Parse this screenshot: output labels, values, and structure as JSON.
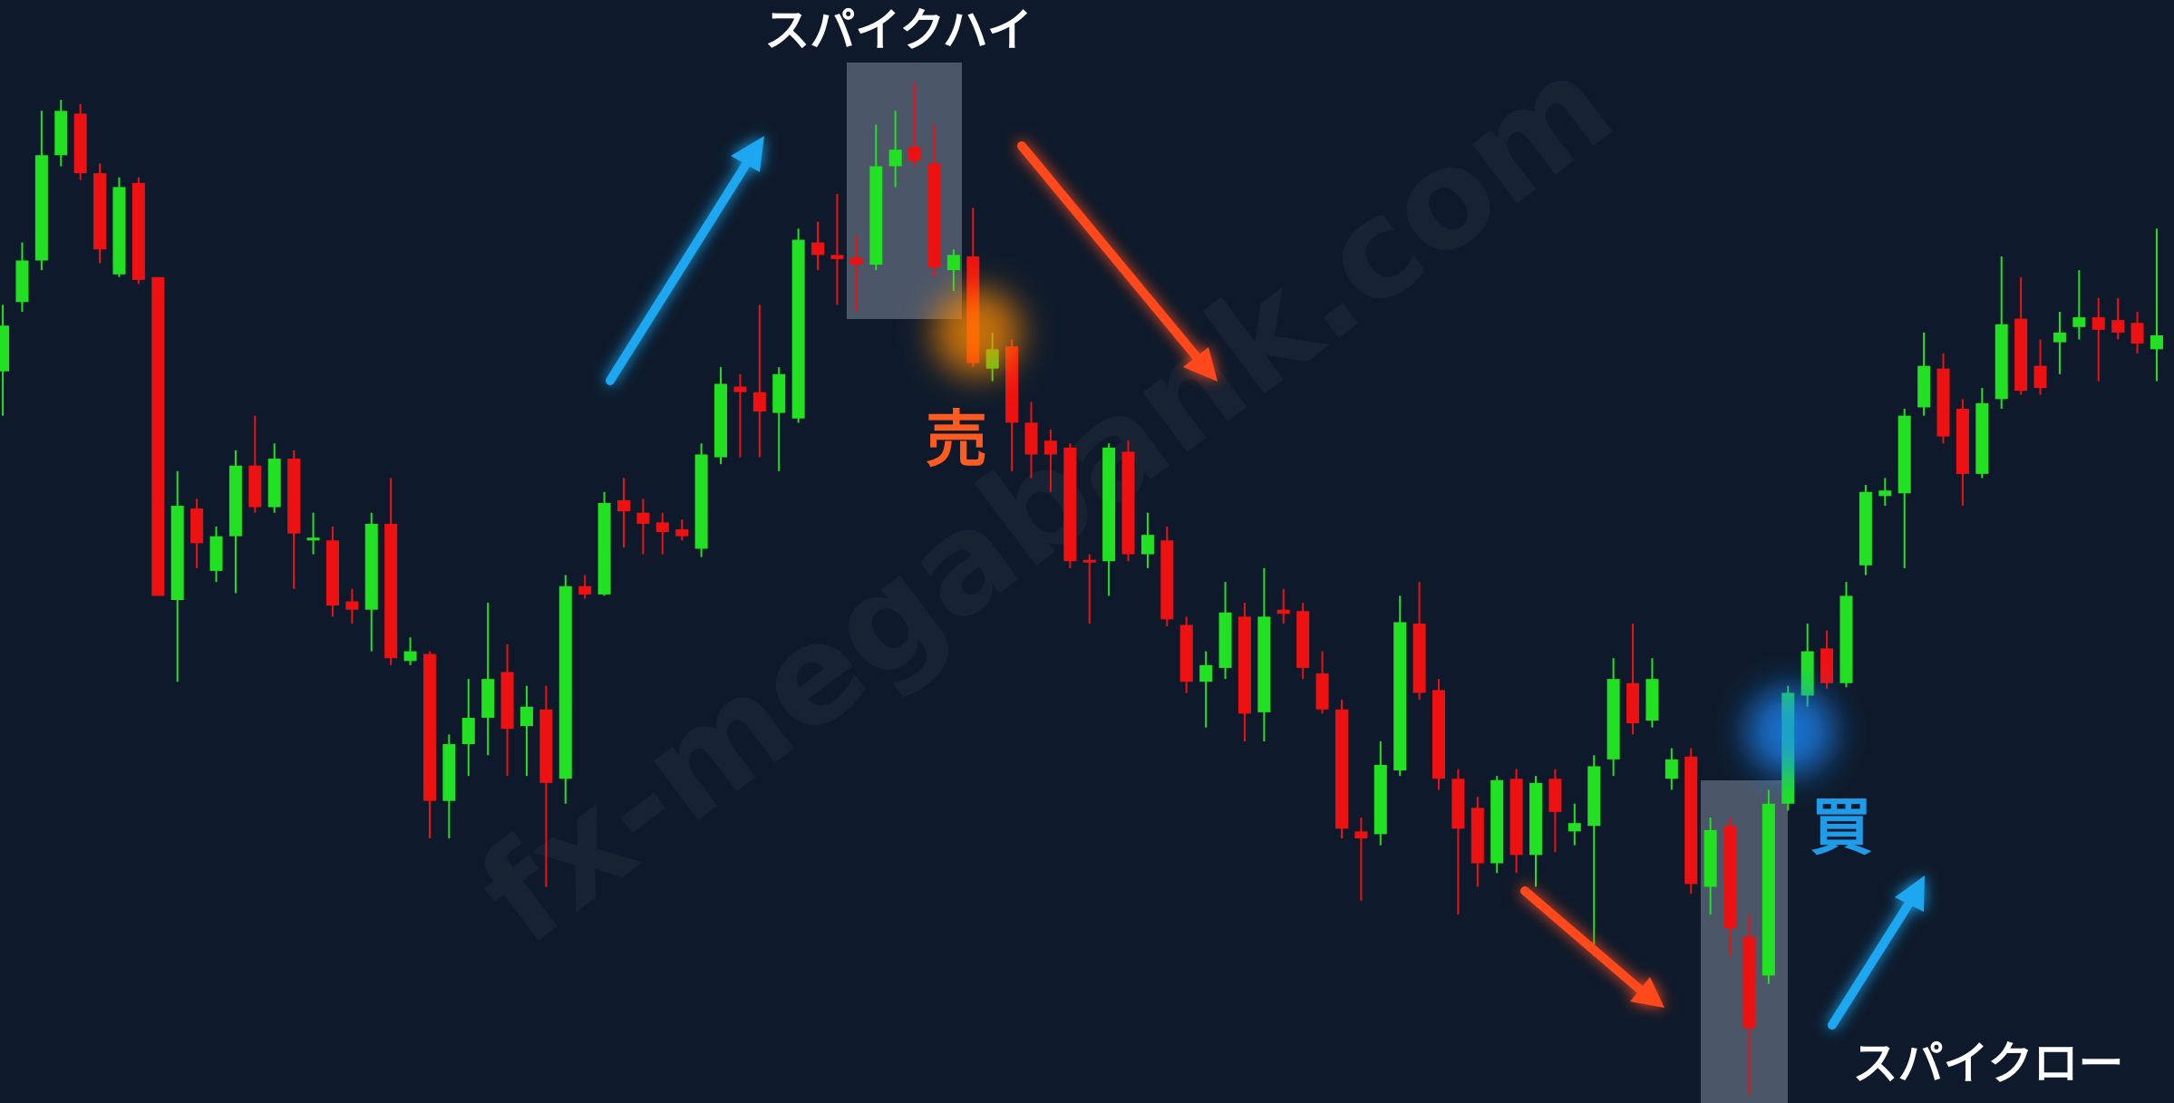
{
  "chart_data": {
    "type": "candlestick",
    "annotations": [
      "スパイクハイ",
      "売",
      "買",
      "スパイクロー"
    ],
    "watermark": "fx-megabank.com",
    "up_color": "#22e022",
    "down_color": "#ee1111",
    "ylim": [
      0,
      800
    ],
    "open": [
      532,
      582,
      612,
      688,
      718,
      675,
      602,
      668,
      600,
      367,
      433,
      388,
      413,
      464,
      434,
      469,
      410,
      410,
      366,
      360,
      422,
      323,
      328,
      222,
      263,
      282,
      315,
      276,
      288,
      238,
      377,
      371,
      439,
      430,
      423,
      418,
      404,
      470,
      521,
      517,
      502,
      498,
      625,
      616,
      614,
      609,
      680,
      694,
      682,
      605,
      615,
      534,
      550,
      495,
      482,
      477,
      396,
      395,
      474,
      400,
      410,
      349,
      308,
      318,
      355,
      286,
      360,
      359,
      314,
      288,
      200,
      198,
      244,
      350,
      302,
      238,
      217,
      177,
      238,
      183,
      238,
      200,
      204,
      252,
      307,
      280,
      238,
      254,
      160,
      204,
      124,
      96,
      220,
      298,
      332,
      307,
      392,
      442,
      444,
      506,
      534,
      505,
      458,
      512,
      570,
      536,
      553,
      564,
      571,
      569,
      567,
      548
    ],
    "high": [
      580,
      625,
      720,
      728,
      725,
      682,
      672,
      672,
      600,
      460,
      440,
      420,
      475,
      500,
      480,
      475,
      430,
      420,
      375,
      430,
      455,
      340,
      330,
      270,
      310,
      365,
      335,
      305,
      305,
      385,
      385,
      445,
      455,
      440,
      430,
      425,
      480,
      535,
      530,
      580,
      535,
      635,
      640,
      660,
      630,
      710,
      720,
      740,
      710,
      620,
      650,
      560,
      555,
      510,
      490,
      480,
      400,
      480,
      482,
      430,
      420,
      355,
      330,
      380,
      365,
      390,
      375,
      365,
      330,
      295,
      210,
      265,
      370,
      380,
      310,
      245,
      225,
      240,
      245,
      240,
      245,
      220,
      255,
      325,
      350,
      325,
      260,
      260,
      210,
      210,
      140,
      230,
      305,
      350,
      345,
      380,
      450,
      455,
      505,
      560,
      545,
      512,
      520,
      615,
      600,
      555,
      575,
      605,
      585,
      585,
      575,
      635
    ],
    "low": [
      500,
      575,
      605,
      680,
      670,
      610,
      600,
      595,
      370,
      308,
      390,
      380,
      372,
      430,
      430,
      375,
      400,
      355,
      350,
      330,
      320,
      320,
      195,
      195,
      240,
      255,
      240,
      240,
      160,
      220,
      368,
      370,
      405,
      400,
      400,
      410,
      398,
      465,
      470,
      470,
      460,
      495,
      605,
      580,
      575,
      605,
      665,
      680,
      600,
      590,
      535,
      525,
      460,
      455,
      445,
      390,
      350,
      370,
      395,
      390,
      348,
      300,
      275,
      310,
      265,
      265,
      350,
      310,
      285,
      195,
      150,
      190,
      240,
      295,
      230,
      140,
      160,
      170,
      170,
      160,
      185,
      190,
      110,
      240,
      270,
      275,
      230,
      155,
      140,
      110,
      10,
      90,
      215,
      290,
      303,
      304,
      385,
      435,
      390,
      500,
      480,
      435,
      455,
      505,
      515,
      515,
      530,
      555,
      525,
      555,
      545,
      525
    ],
    "close": [
      565,
      612,
      688,
      720,
      675,
      620,
      665,
      598,
      370,
      435,
      408,
      413,
      464,
      434,
      469,
      415,
      412,
      363,
      360,
      422,
      325,
      330,
      222,
      263,
      282,
      310,
      274,
      290,
      235,
      377,
      371,
      437,
      431,
      422,
      416,
      413,
      472,
      523,
      517,
      503,
      530,
      627,
      616,
      613,
      609,
      680,
      692,
      684,
      607,
      616,
      538,
      548,
      495,
      472,
      472,
      395,
      394,
      477,
      400,
      414,
      353,
      308,
      320,
      358,
      285,
      355,
      357,
      318,
      288,
      202,
      195,
      248,
      351,
      300,
      238,
      202,
      177,
      237,
      183,
      235,
      214,
      206,
      247,
      310,
      278,
      310,
      252,
      162,
      201,
      130,
      58,
      220,
      300,
      330,
      307,
      370,
      445,
      446,
      500,
      536,
      485,
      458,
      509,
      566,
      518,
      520,
      560,
      571,
      562,
      560,
      552,
      558
    ]
  }
}
